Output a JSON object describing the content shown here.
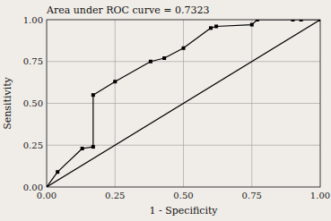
{
  "chart_data": {
    "type": "line",
    "title": "Area under ROC curve = 0.7323",
    "xlabel": "1 - Specificity",
    "ylabel": "Sensitivity",
    "xlim": [
      0.0,
      1.0
    ],
    "ylim": [
      0.0,
      1.0
    ],
    "xticks": [
      {
        "value": 0.0,
        "label": "0.00"
      },
      {
        "value": 0.25,
        "label": "0.25"
      },
      {
        "value": 0.5,
        "label": "0.50"
      },
      {
        "value": 0.75,
        "label": "0.75"
      },
      {
        "value": 1.0,
        "label": "1.00"
      }
    ],
    "yticks": [
      {
        "value": 0.0,
        "label": "0.00"
      },
      {
        "value": 0.25,
        "label": "0.25"
      },
      {
        "value": 0.5,
        "label": "0.50"
      },
      {
        "value": 0.75,
        "label": "0.75"
      },
      {
        "value": 1.0,
        "label": "1.00"
      }
    ],
    "grid": true,
    "series": [
      {
        "color": "#000000",
        "marker": "square",
        "x": [
          0.0,
          0.04,
          0.13,
          0.17,
          0.17,
          0.25,
          0.38,
          0.43,
          0.5,
          0.6,
          0.62,
          0.75,
          0.77,
          0.9,
          0.93,
          1.0
        ],
        "values": [
          0.0,
          0.09,
          0.23,
          0.24,
          0.55,
          0.63,
          0.75,
          0.77,
          0.83,
          0.95,
          0.96,
          0.97,
          1.0,
          1.0,
          1.0,
          1.0
        ]
      },
      {
        "color": "#000000",
        "x": [
          0.0,
          1.0
        ],
        "values": [
          0.0,
          1.0
        ]
      }
    ]
  }
}
